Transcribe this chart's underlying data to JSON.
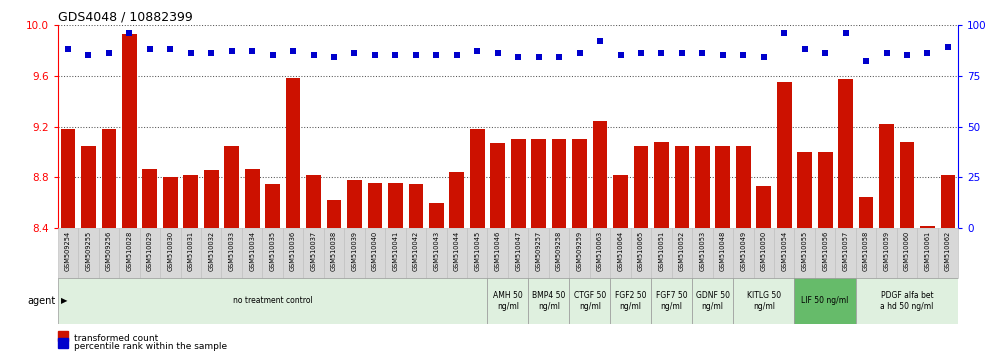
{
  "title": "GDS4048 / 10882399",
  "samples": [
    "GSM509254",
    "GSM509255",
    "GSM509256",
    "GSM510028",
    "GSM510029",
    "GSM510030",
    "GSM510031",
    "GSM510032",
    "GSM510033",
    "GSM510034",
    "GSM510035",
    "GSM510036",
    "GSM510037",
    "GSM510038",
    "GSM510039",
    "GSM510040",
    "GSM510041",
    "GSM510042",
    "GSM510043",
    "GSM510044",
    "GSM510045",
    "GSM510046",
    "GSM510047",
    "GSM509257",
    "GSM509258",
    "GSM509259",
    "GSM510063",
    "GSM510064",
    "GSM510065",
    "GSM510051",
    "GSM510052",
    "GSM510053",
    "GSM510048",
    "GSM510049",
    "GSM510050",
    "GSM510054",
    "GSM510055",
    "GSM510056",
    "GSM510057",
    "GSM510058",
    "GSM510059",
    "GSM510060",
    "GSM510061",
    "GSM510062"
  ],
  "bar_values": [
    9.18,
    9.05,
    9.18,
    9.93,
    8.87,
    8.8,
    8.82,
    8.86,
    9.05,
    8.87,
    8.75,
    9.58,
    8.82,
    8.62,
    8.78,
    8.76,
    8.76,
    8.75,
    8.6,
    8.84,
    9.18,
    9.07,
    9.1,
    9.1,
    9.1,
    9.1,
    9.24,
    8.82,
    9.05,
    9.08,
    9.05,
    9.05,
    9.05,
    9.05,
    8.73,
    9.55,
    9.0,
    9.0,
    9.57,
    8.65,
    9.22,
    9.08,
    8.42,
    8.82
  ],
  "dot_values": [
    88,
    85,
    86,
    96,
    88,
    88,
    86,
    86,
    87,
    87,
    85,
    87,
    85,
    84,
    86,
    85,
    85,
    85,
    85,
    85,
    87,
    86,
    84,
    84,
    84,
    86,
    92,
    85,
    86,
    86,
    86,
    86,
    85,
    85,
    84,
    96,
    88,
    86,
    96,
    82,
    86,
    85,
    86,
    89
  ],
  "agent_groups": [
    {
      "label": "no treatment control",
      "start": 0,
      "end": 21,
      "color": "#dff0df"
    },
    {
      "label": "AMH 50\nng/ml",
      "start": 21,
      "end": 23,
      "color": "#dff0df"
    },
    {
      "label": "BMP4 50\nng/ml",
      "start": 23,
      "end": 25,
      "color": "#dff0df"
    },
    {
      "label": "CTGF 50\nng/ml",
      "start": 25,
      "end": 27,
      "color": "#dff0df"
    },
    {
      "label": "FGF2 50\nng/ml",
      "start": 27,
      "end": 29,
      "color": "#dff0df"
    },
    {
      "label": "FGF7 50\nng/ml",
      "start": 29,
      "end": 31,
      "color": "#dff0df"
    },
    {
      "label": "GDNF 50\nng/ml",
      "start": 31,
      "end": 33,
      "color": "#dff0df"
    },
    {
      "label": "KITLG 50\nng/ml",
      "start": 33,
      "end": 36,
      "color": "#dff0df"
    },
    {
      "label": "LIF 50 ng/ml",
      "start": 36,
      "end": 39,
      "color": "#66bb6a"
    },
    {
      "label": "PDGF alfa bet\na hd 50 ng/ml",
      "start": 39,
      "end": 44,
      "color": "#dff0df"
    }
  ],
  "ylim_left": [
    8.4,
    10.0
  ],
  "ylim_right": [
    0,
    100
  ],
  "yticks_left": [
    8.4,
    8.8,
    9.2,
    9.6,
    10.0
  ],
  "yticks_right": [
    0,
    25,
    50,
    75,
    100
  ],
  "bar_color": "#cc1100",
  "dot_color": "#0000cc",
  "fig_width": 9.96,
  "fig_height": 3.54,
  "fig_dpi": 100
}
